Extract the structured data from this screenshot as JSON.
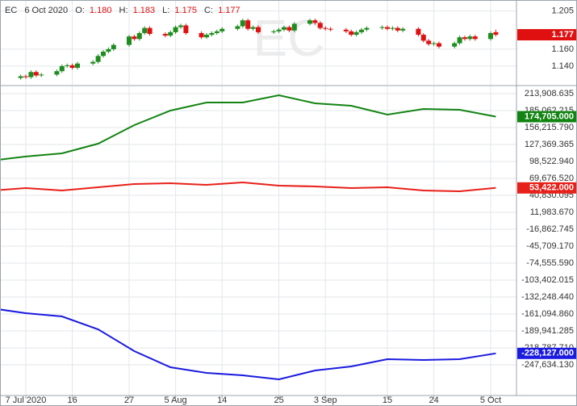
{
  "header": {
    "symbol": "EC",
    "date": "6 Oct 2020",
    "fields": [
      {
        "label": "O:",
        "value": "1.180"
      },
      {
        "label": "H:",
        "value": "1.183"
      },
      {
        "label": "L:",
        "value": "1.175"
      },
      {
        "label": "C:",
        "value": "1.177"
      }
    ]
  },
  "chart_data": [
    {
      "type": "candlestick",
      "color_up": "#1e8c1e",
      "color_down": "#e01010",
      "x": [
        "2020-07-06",
        "2020-07-07",
        "2020-07-08",
        "2020-07-09",
        "2020-07-10",
        "2020-07-13",
        "2020-07-14",
        "2020-07-15",
        "2020-07-16",
        "2020-07-17",
        "2020-07-20",
        "2020-07-21",
        "2020-07-22",
        "2020-07-23",
        "2020-07-24",
        "2020-07-27",
        "2020-07-28",
        "2020-07-29",
        "2020-07-30",
        "2020-07-31",
        "2020-08-03",
        "2020-08-04",
        "2020-08-05",
        "2020-08-06",
        "2020-08-07",
        "2020-08-10",
        "2020-08-11",
        "2020-08-12",
        "2020-08-13",
        "2020-08-14",
        "2020-08-17",
        "2020-08-18",
        "2020-08-19",
        "2020-08-20",
        "2020-08-21",
        "2020-08-24",
        "2020-08-25",
        "2020-08-26",
        "2020-08-27",
        "2020-08-28",
        "2020-08-31",
        "2020-09-01",
        "2020-09-02",
        "2020-09-03",
        "2020-09-04",
        "2020-09-07",
        "2020-09-08",
        "2020-09-09",
        "2020-09-10",
        "2020-09-11",
        "2020-09-14",
        "2020-09-15",
        "2020-09-16",
        "2020-09-17",
        "2020-09-18",
        "2020-09-21",
        "2020-09-22",
        "2020-09-23",
        "2020-09-24",
        "2020-09-25",
        "2020-09-28",
        "2020-09-29",
        "2020-09-30",
        "2020-10-01",
        "2020-10-02",
        "2020-10-05",
        "2020-10-06"
      ],
      "open": [
        1.126,
        1.128,
        1.127,
        1.133,
        1.129,
        1.13,
        1.134,
        1.14,
        1.141,
        1.138,
        1.143,
        1.145,
        1.152,
        1.157,
        1.16,
        1.165,
        1.175,
        1.172,
        1.179,
        1.185,
        1.178,
        1.176,
        1.18,
        1.186,
        1.188,
        1.179,
        1.174,
        1.177,
        1.179,
        1.181,
        1.184,
        1.187,
        1.194,
        1.184,
        1.186,
        1.18,
        1.181,
        1.183,
        1.186,
        1.182,
        1.19,
        1.194,
        1.191,
        1.185,
        1.184,
        1.183,
        1.181,
        1.177,
        1.18,
        1.183,
        1.185,
        1.186,
        1.184,
        1.185,
        1.182,
        1.184,
        1.177,
        1.17,
        1.166,
        1.167,
        1.163,
        1.167,
        1.174,
        1.172,
        1.175,
        1.172,
        1.18
      ],
      "high": [
        1.13,
        1.13,
        1.135,
        1.135,
        1.132,
        1.136,
        1.142,
        1.143,
        1.143,
        1.145,
        1.147,
        1.154,
        1.159,
        1.162,
        1.167,
        1.177,
        1.177,
        1.181,
        1.187,
        1.187,
        1.18,
        1.182,
        1.188,
        1.19,
        1.19,
        1.181,
        1.179,
        1.181,
        1.183,
        1.186,
        1.189,
        1.196,
        1.196,
        1.188,
        1.188,
        1.183,
        1.185,
        1.188,
        1.188,
        1.192,
        1.196,
        1.196,
        1.193,
        1.187,
        1.186,
        1.185,
        1.183,
        1.182,
        1.185,
        1.187,
        1.188,
        1.188,
        1.187,
        1.187,
        1.186,
        1.186,
        1.179,
        1.172,
        1.169,
        1.169,
        1.169,
        1.176,
        1.176,
        1.177,
        1.177,
        1.181,
        1.183
      ],
      "low": [
        1.124,
        1.125,
        1.125,
        1.127,
        1.127,
        1.128,
        1.132,
        1.138,
        1.136,
        1.136,
        1.141,
        1.143,
        1.15,
        1.155,
        1.158,
        1.163,
        1.17,
        1.17,
        1.177,
        1.176,
        1.174,
        1.174,
        1.178,
        1.184,
        1.177,
        1.172,
        1.172,
        1.175,
        1.177,
        1.179,
        1.182,
        1.185,
        1.182,
        1.182,
        1.178,
        1.178,
        1.179,
        1.181,
        1.18,
        1.18,
        1.188,
        1.189,
        1.183,
        1.182,
        1.181,
        1.179,
        1.175,
        1.175,
        1.178,
        1.181,
        1.183,
        1.182,
        1.182,
        1.18,
        1.18,
        1.175,
        1.168,
        1.164,
        1.164,
        1.161,
        1.161,
        1.165,
        1.17,
        1.17,
        1.17,
        1.17,
        1.175
      ],
      "close": [
        1.128,
        1.127,
        1.133,
        1.129,
        1.13,
        1.134,
        1.14,
        1.141,
        1.138,
        1.143,
        1.145,
        1.152,
        1.157,
        1.16,
        1.165,
        1.175,
        1.172,
        1.179,
        1.185,
        1.178,
        1.176,
        1.18,
        1.186,
        1.188,
        1.179,
        1.174,
        1.177,
        1.179,
        1.181,
        1.184,
        1.187,
        1.194,
        1.184,
        1.186,
        1.18,
        1.181,
        1.183,
        1.186,
        1.182,
        1.19,
        1.194,
        1.191,
        1.185,
        1.184,
        1.183,
        1.181,
        1.177,
        1.18,
        1.183,
        1.185,
        1.186,
        1.184,
        1.185,
        1.182,
        1.184,
        1.177,
        1.17,
        1.166,
        1.167,
        1.163,
        1.167,
        1.174,
        1.172,
        1.175,
        1.172,
        1.179,
        1.177
      ],
      "last_value_label": "1.177",
      "last_color": "#e01010",
      "xlim": [
        "2020-07-02",
        "2020-10-10"
      ],
      "ylim": [
        1.118,
        1.218
      ],
      "yticks": [
        {
          "value": 1.205,
          "label": "1.205"
        },
        {
          "value": 1.16,
          "label": "1.160"
        },
        {
          "value": 1.14,
          "label": "1.140"
        }
      ],
      "grid": true
    },
    {
      "type": "line",
      "x": [
        "2020-06-30",
        "2020-07-07",
        "2020-07-14",
        "2020-07-21",
        "2020-07-28",
        "2020-08-04",
        "2020-08-11",
        "2020-08-18",
        "2020-08-25",
        "2020-09-01",
        "2020-09-08",
        "2020-09-15",
        "2020-09-22",
        "2020-09-29",
        "2020-10-06"
      ],
      "series": [
        {
          "color": "#128412",
          "values": [
            99500,
            106900,
            112300,
            128700,
            160300,
            185100,
            198800,
            198800,
            211200,
            197400,
            193300,
            178200,
            187800,
            186400,
            174705
          ],
          "last_value_label": "174,705.000"
        },
        {
          "color": "#e8201a",
          "values": [
            48500,
            53200,
            49100,
            54600,
            60100,
            61400,
            58700,
            62800,
            57300,
            55900,
            53200,
            54600,
            49100,
            47700,
            53422
          ],
          "last_value_label": "53,422.000"
        },
        {
          "color": "#1a1ae0",
          "values": [
            -151000,
            -159700,
            -165200,
            -187200,
            -224300,
            -251800,
            -261400,
            -265500,
            -272400,
            -257300,
            -250400,
            -238000,
            -239400,
            -238000,
            -228127
          ],
          "last_value_label": "-228,127.000"
        }
      ],
      "xlim": [
        "2020-07-02",
        "2020-10-10"
      ],
      "ylim": [
        -299835,
        226271
      ],
      "xticks": [
        {
          "value": "2020-07-07",
          "label": "7 Jul 2020"
        },
        {
          "value": "2020-07-16",
          "label": "16"
        },
        {
          "value": "2020-07-27",
          "label": "27"
        },
        {
          "value": "2020-08-05",
          "label": "5 Aug"
        },
        {
          "value": "2020-08-14",
          "label": "14"
        },
        {
          "value": "2020-08-25",
          "label": "25"
        },
        {
          "value": "2020-09-03",
          "label": "3 Sep"
        },
        {
          "value": "2020-09-15",
          "label": "15"
        },
        {
          "value": "2020-09-24",
          "label": "24"
        },
        {
          "value": "2020-10-05",
          "label": "5 Oct"
        }
      ],
      "yticks": [
        {
          "value": 213908.635,
          "label": "213,908.635"
        },
        {
          "value": 185062.215,
          "label": "185,062.215"
        },
        {
          "value": 156215.79,
          "label": "156,215.790"
        },
        {
          "value": 127369.365,
          "label": "127,369.365"
        },
        {
          "value": 98522.94,
          "label": "98,522.940"
        },
        {
          "value": 69676.52,
          "label": "69,676.520"
        },
        {
          "value": 40830.095,
          "label": "40,830.095"
        },
        {
          "value": 11983.67,
          "label": "11,983.670"
        },
        {
          "value": -16862.745,
          "label": "-16,862.745"
        },
        {
          "value": -45709.17,
          "label": "-45,709.170"
        },
        {
          "value": -74555.59,
          "label": "-74,555.590"
        },
        {
          "value": -103402.015,
          "label": "-103,402.015"
        },
        {
          "value": -132248.44,
          "label": "-132,248.440"
        },
        {
          "value": -161094.86,
          "label": "-161,094.860"
        },
        {
          "value": -189941.285,
          "label": "-189,941.285"
        },
        {
          "value": -218787.71,
          "label": "-218,787.710"
        },
        {
          "value": -247634.13,
          "label": "-247,634.130"
        }
      ],
      "grid": true
    }
  ]
}
